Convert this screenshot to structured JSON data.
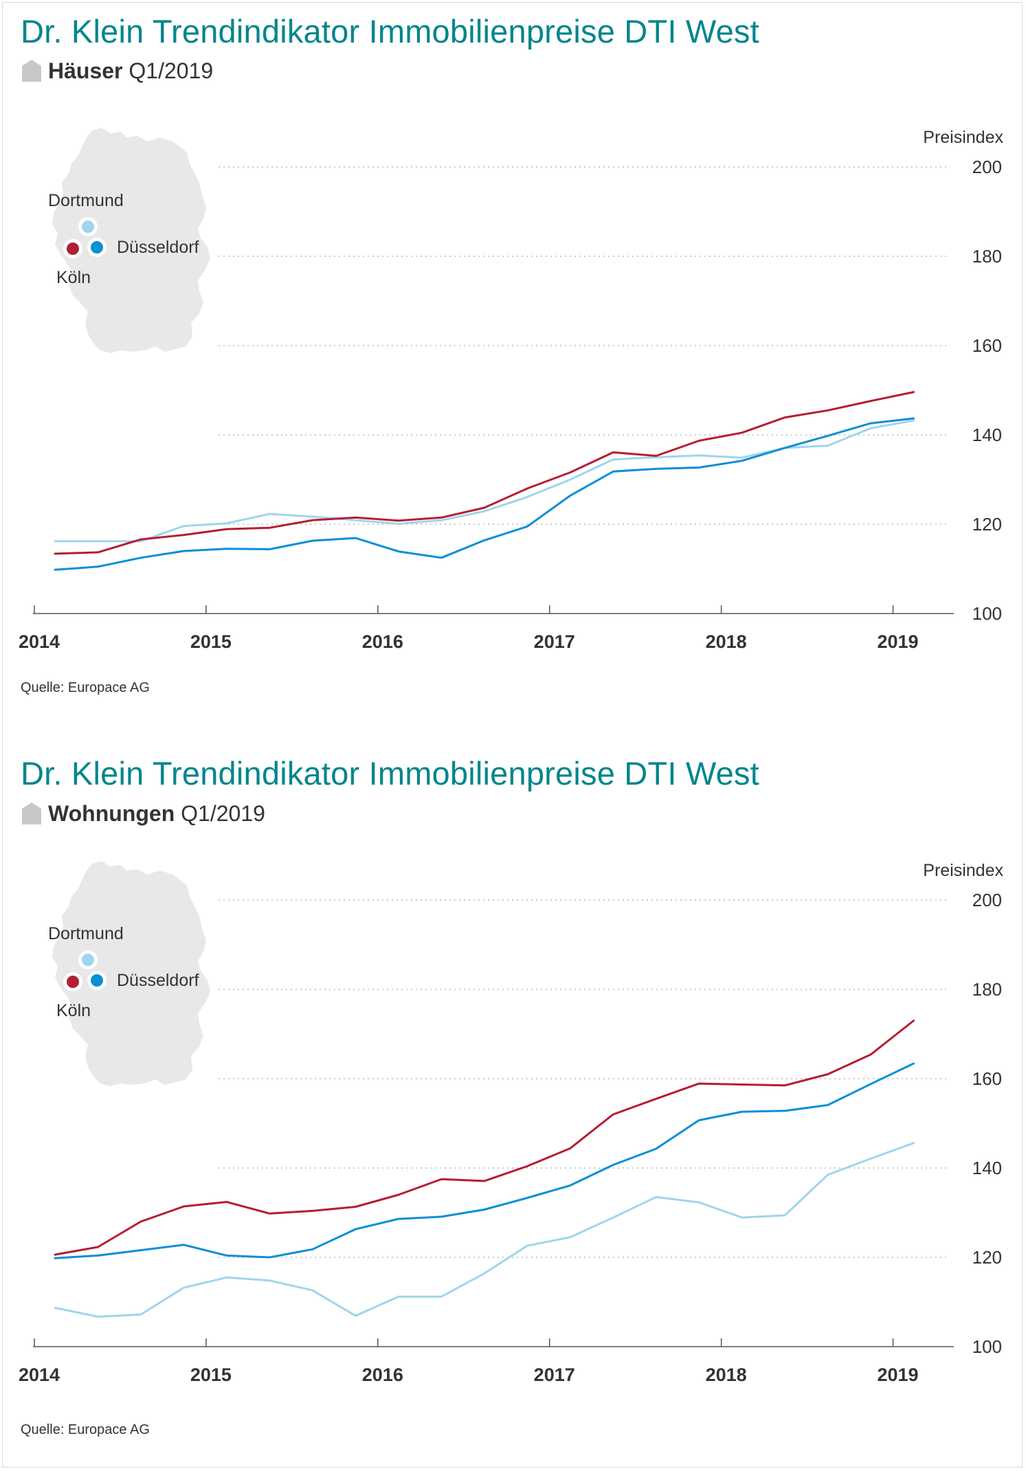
{
  "colors": {
    "accent": "#00858c",
    "koeln": "#b41e32",
    "duesseldorf": "#0a8fd4",
    "dortmund": "#9fd5ee",
    "map": "#e8e8e8",
    "icon": "#c8c8c8"
  },
  "icons": {
    "category": "house-icon",
    "map": "germany-map-icon"
  },
  "charts": [
    {
      "title": "Dr. Klein Trendindikator Immobilienpreise DTI West",
      "category": "Häuser",
      "period": "Q1/2019",
      "source": "Quelle: Europace AG",
      "legend": {
        "dortmund": "Dortmund",
        "duesseldorf": "Düsseldorf",
        "koeln": "Köln"
      }
    },
    {
      "title": "Dr. Klein Trendindikator Immobilienpreise DTI West",
      "category": "Wohnungen",
      "period": "Q1/2019",
      "source": "Quelle: Europace AG",
      "legend": {
        "dortmund": "Dortmund",
        "duesseldorf": "Düsseldorf",
        "koeln": "Köln"
      }
    }
  ],
  "chart_data": [
    {
      "type": "line",
      "title": "Dr. Klein Trendindikator Immobilienpreise DTI West",
      "subtitle": "Häuser Q1/2019",
      "ylabel": "Preisindex",
      "xlabel": "",
      "ylim": [
        100,
        200
      ],
      "yticks": [
        100,
        120,
        140,
        160,
        180,
        200
      ],
      "xlim": [
        2014.0,
        2019.25
      ],
      "xticks": [
        2014,
        2015,
        2016,
        2017,
        2018,
        2019
      ],
      "xtick_labels": [
        "2014",
        "2015",
        "2016",
        "2017",
        "2018",
        "2019"
      ],
      "grid": "horizontal dotted",
      "legend": "top-left map",
      "x": [
        2014.12,
        2014.37,
        2014.62,
        2014.87,
        2015.12,
        2015.37,
        2015.62,
        2015.87,
        2016.12,
        2016.37,
        2016.62,
        2016.87,
        2017.12,
        2017.37,
        2017.62,
        2017.87,
        2018.12,
        2018.37,
        2018.62,
        2018.87,
        2019.12
      ],
      "series": [
        {
          "name": "Dortmund",
          "key": "dortmund",
          "values": [
            116.2,
            116.2,
            116.2,
            119.6,
            120.2,
            122.3,
            121.7,
            120.9,
            120.1,
            120.9,
            122.9,
            126.1,
            130.0,
            134.5,
            135.0,
            135.4,
            134.9,
            137.1,
            137.6,
            141.5,
            143.2
          ]
        },
        {
          "name": "Düsseldorf",
          "key": "duesseldorf",
          "values": [
            109.8,
            110.5,
            112.5,
            114.0,
            114.5,
            114.4,
            116.3,
            116.9,
            113.9,
            112.5,
            116.4,
            119.5,
            126.4,
            131.8,
            132.4,
            132.7,
            134.2,
            137.1,
            139.8,
            142.6,
            143.7
          ]
        },
        {
          "name": "Köln",
          "key": "koeln",
          "values": [
            113.4,
            113.7,
            116.6,
            117.6,
            118.9,
            119.2,
            120.9,
            121.5,
            120.8,
            121.5,
            123.7,
            128.0,
            131.6,
            136.1,
            135.3,
            138.7,
            140.5,
            143.9,
            145.5,
            147.6,
            149.6
          ]
        }
      ]
    },
    {
      "type": "line",
      "title": "Dr. Klein Trendindikator Immobilienpreise DTI West",
      "subtitle": "Wohnungen Q1/2019",
      "ylabel": "Preisindex",
      "xlabel": "",
      "ylim": [
        100,
        200
      ],
      "yticks": [
        100,
        120,
        140,
        160,
        180,
        200
      ],
      "xlim": [
        2014.0,
        2019.25
      ],
      "xticks": [
        2014,
        2015,
        2016,
        2017,
        2018,
        2019
      ],
      "xtick_labels": [
        "2014",
        "2015",
        "2016",
        "2017",
        "2018",
        "2019"
      ],
      "grid": "horizontal dotted",
      "legend": "top-left map",
      "x": [
        2014.12,
        2014.37,
        2014.62,
        2014.87,
        2015.12,
        2015.37,
        2015.62,
        2015.87,
        2016.12,
        2016.37,
        2016.62,
        2016.87,
        2017.12,
        2017.37,
        2017.62,
        2017.87,
        2018.12,
        2018.37,
        2018.62,
        2018.87,
        2019.12
      ],
      "series": [
        {
          "name": "Dortmund",
          "key": "dortmund",
          "values": [
            108.7,
            106.7,
            107.2,
            113.2,
            115.5,
            114.8,
            112.6,
            106.9,
            111.2,
            111.2,
            116.4,
            122.6,
            124.5,
            128.9,
            133.5,
            132.3,
            128.9,
            129.4,
            138.5,
            142.1,
            145.6
          ]
        },
        {
          "name": "Düsseldorf",
          "key": "duesseldorf",
          "values": [
            119.8,
            120.4,
            121.6,
            122.8,
            120.4,
            120.0,
            121.8,
            126.3,
            128.6,
            129.1,
            130.7,
            133.3,
            136.1,
            140.7,
            144.3,
            150.7,
            152.6,
            152.8,
            154.1,
            158.8,
            163.4
          ]
        },
        {
          "name": "Köln",
          "key": "koeln",
          "values": [
            120.6,
            122.3,
            128.0,
            131.4,
            132.4,
            129.8,
            130.4,
            131.3,
            134.0,
            137.5,
            137.1,
            140.4,
            144.4,
            152.0,
            155.5,
            158.9,
            158.7,
            158.5,
            161.0,
            165.4,
            173.0
          ]
        }
      ]
    }
  ]
}
